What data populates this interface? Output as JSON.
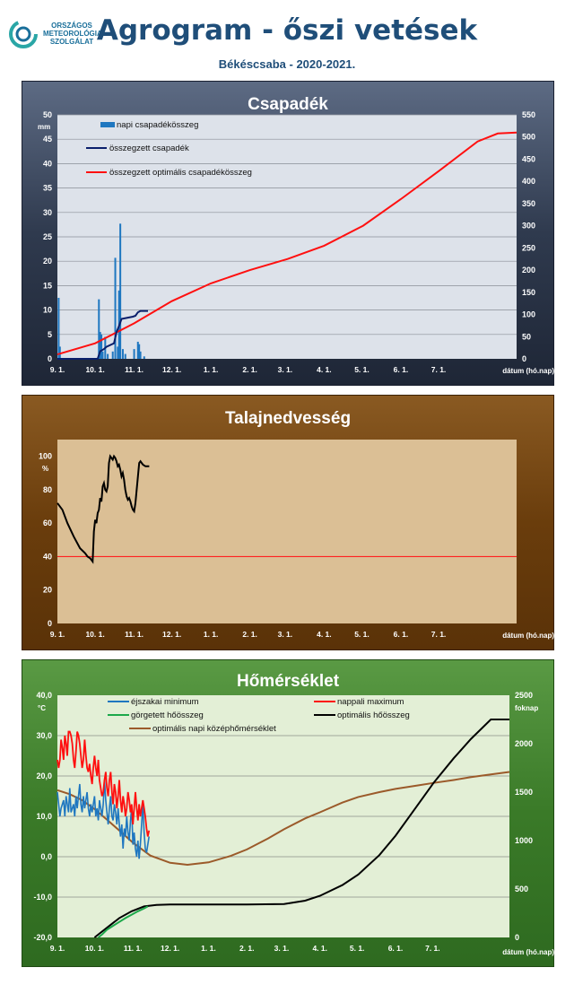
{
  "header": {
    "logo_lines": [
      "ORSZÁGOS",
      "METEOROLÓGIAI",
      "SZOLGÁLAT"
    ],
    "title": "Agrogram - őszi vetések",
    "subtitle": "Békéscsaba - 2020-2021."
  },
  "colors": {
    "rain_bar": "#1f77c0",
    "rain_cum": "#0a1f6b",
    "rain_opt": "#ff1010",
    "soil_line": "#000000",
    "soil_threshold": "#ff2020",
    "tmin": "#1f77c0",
    "tmax": "#ff1010",
    "gdd": "#1ca84a",
    "gdd_opt": "#000000",
    "tmean_opt": "#9b5a2a"
  },
  "chart_data": [
    {
      "type": "bar",
      "title": "Csapadék",
      "ylabel_left": "mm",
      "ylabel_right": "",
      "xlabel": "dátum (hó.nap)",
      "x_ticks": [
        "9. 1.",
        "10. 1.",
        "11. 1.",
        "12. 1.",
        "1. 1.",
        "2. 1.",
        "3. 1.",
        "4. 1.",
        "5. 1.",
        "6. 1.",
        "7. 1."
      ],
      "ylim_left": [
        0,
        50
      ],
      "y_ticks_left": [
        "0",
        "5",
        "10",
        "15",
        "20",
        "25",
        "30",
        "35",
        "40",
        "45",
        "50"
      ],
      "ylim_right": [
        0,
        550
      ],
      "y_ticks_right": [
        "0",
        "50",
        "100",
        "150",
        "200",
        "250",
        "300",
        "350",
        "400",
        "450",
        "500",
        "550"
      ],
      "legend": [
        "napi csapadékösszeg",
        "összegzett csapadék",
        "összegzett optimális csapadékösszeg"
      ],
      "daily_precip": [
        [
          1,
          12.5
        ],
        [
          2,
          2.5
        ],
        [
          33,
          12.2
        ],
        [
          34,
          5.5
        ],
        [
          35,
          5.0
        ],
        [
          36,
          1.5
        ],
        [
          38,
          4.5
        ],
        [
          40,
          1.0
        ],
        [
          44,
          1.5
        ],
        [
          46,
          20.7
        ],
        [
          48,
          2.5
        ],
        [
          49,
          14.0
        ],
        [
          50,
          27.7
        ],
        [
          52,
          2.0
        ],
        [
          54,
          1.0
        ],
        [
          61,
          2.0
        ],
        [
          64,
          3.5
        ],
        [
          65,
          3.0
        ],
        [
          66,
          1.5
        ],
        [
          69,
          0.5
        ]
      ],
      "cum_precip": [
        [
          0,
          0
        ],
        [
          32,
          0
        ],
        [
          34,
          17
        ],
        [
          37,
          22
        ],
        [
          39,
          27
        ],
        [
          45,
          35
        ],
        [
          47,
          60
        ],
        [
          49,
          74
        ],
        [
          51,
          90
        ],
        [
          60,
          95
        ],
        [
          62,
          97
        ],
        [
          64,
          105
        ],
        [
          66,
          108
        ],
        [
          72,
          108
        ]
      ],
      "opt_cum_precip": [
        [
          0,
          10
        ],
        [
          30,
          35
        ],
        [
          61,
          80
        ],
        [
          91,
          130
        ],
        [
          122,
          170
        ],
        [
          153,
          200
        ],
        [
          183,
          225
        ],
        [
          212,
          255
        ],
        [
          243,
          300
        ],
        [
          273,
          360
        ],
        [
          304,
          425
        ],
        [
          334,
          490
        ],
        [
          350,
          508
        ],
        [
          365,
          510
        ]
      ]
    },
    {
      "type": "line",
      "title": "Talajnedvesség",
      "ylabel": "%",
      "xlabel": "dátum (hó.nap)",
      "x_ticks": [
        "9. 1.",
        "10. 1.",
        "11. 1.",
        "12. 1.",
        "1. 1.",
        "2. 1.",
        "3. 1.",
        "4. 1.",
        "5. 1.",
        "6. 1.",
        "7. 1."
      ],
      "ylim": [
        0,
        110
      ],
      "y_ticks": [
        "0",
        "20",
        "40",
        "60",
        "80",
        "100"
      ],
      "threshold": 40,
      "soil_moisture": [
        [
          0,
          72
        ],
        [
          4,
          68
        ],
        [
          8,
          60
        ],
        [
          13,
          52
        ],
        [
          18,
          45
        ],
        [
          22,
          42
        ],
        [
          24,
          40
        ],
        [
          26,
          39
        ],
        [
          27,
          38
        ],
        [
          28,
          37
        ],
        [
          29,
          55
        ],
        [
          30,
          62
        ],
        [
          31,
          60
        ],
        [
          32,
          66
        ],
        [
          33,
          68
        ],
        [
          34,
          75
        ],
        [
          35,
          73
        ],
        [
          36,
          82
        ],
        [
          37,
          84
        ],
        [
          38,
          80
        ],
        [
          39,
          79
        ],
        [
          40,
          82
        ],
        [
          41,
          96
        ],
        [
          42,
          100
        ],
        [
          43,
          99
        ],
        [
          44,
          98
        ],
        [
          45,
          100
        ],
        [
          46,
          99
        ],
        [
          47,
          97
        ],
        [
          48,
          94
        ],
        [
          49,
          95
        ],
        [
          50,
          92
        ],
        [
          51,
          88
        ],
        [
          52,
          90
        ],
        [
          53,
          86
        ],
        [
          54,
          80
        ],
        [
          55,
          76
        ],
        [
          56,
          74
        ],
        [
          57,
          75
        ],
        [
          58,
          73
        ],
        [
          59,
          70
        ],
        [
          60,
          68
        ],
        [
          61,
          67
        ],
        [
          62,
          72
        ],
        [
          63,
          80
        ],
        [
          64,
          88
        ],
        [
          65,
          96
        ],
        [
          66,
          97
        ],
        [
          67,
          96
        ],
        [
          68,
          95
        ],
        [
          70,
          94
        ],
        [
          73,
          94
        ]
      ]
    },
    {
      "type": "line",
      "title": "Hőmérséklet",
      "ylabel_left": "°C",
      "ylabel_right": "foknap",
      "xlabel": "dátum (hó.nap)",
      "x_ticks": [
        "9. 1.",
        "10. 1.",
        "11. 1.",
        "12. 1.",
        "1. 1.",
        "2. 1.",
        "3. 1.",
        "4. 1.",
        "5. 1.",
        "6. 1.",
        "7. 1."
      ],
      "ylim_left": [
        -20,
        40
      ],
      "y_ticks_left": [
        "-20,0",
        "-10,0",
        "0,0",
        "10,0",
        "20,0",
        "30,0",
        "40,0"
      ],
      "ylim_right": [
        0,
        2500
      ],
      "y_ticks_right": [
        "0",
        "500",
        "1000",
        "1500",
        "2000",
        "2500"
      ],
      "legend": [
        "éjszakai minimum",
        "nappali maximum",
        "görgetett hőösszeg",
        "optimális hőösszeg",
        "optimális napi középhőmérséklet"
      ],
      "tmin": [
        [
          0,
          16
        ],
        [
          2,
          10
        ],
        [
          3,
          12
        ],
        [
          5,
          14
        ],
        [
          6,
          10
        ],
        [
          7,
          15
        ],
        [
          9,
          11
        ],
        [
          10,
          17
        ],
        [
          11,
          11
        ],
        [
          13,
          13
        ],
        [
          14,
          10
        ],
        [
          15,
          15
        ],
        [
          16,
          12
        ],
        [
          18,
          18
        ],
        [
          19,
          13
        ],
        [
          20,
          11
        ],
        [
          21,
          15
        ],
        [
          22,
          12
        ],
        [
          24,
          16
        ],
        [
          25,
          12
        ],
        [
          26,
          10
        ],
        [
          27,
          13
        ],
        [
          28,
          11
        ],
        [
          30,
          15
        ],
        [
          31,
          10
        ],
        [
          32,
          12
        ],
        [
          33,
          9
        ],
        [
          34,
          14
        ],
        [
          35,
          12
        ],
        [
          36,
          10
        ],
        [
          37,
          13
        ],
        [
          38,
          19
        ],
        [
          39,
          14
        ],
        [
          40,
          11
        ],
        [
          41,
          8
        ],
        [
          42,
          12
        ],
        [
          43,
          15
        ],
        [
          44,
          10
        ],
        [
          45,
          9
        ],
        [
          46,
          13
        ],
        [
          47,
          11
        ],
        [
          48,
          8
        ],
        [
          49,
          12
        ],
        [
          50,
          8
        ],
        [
          51,
          5
        ],
        [
          52,
          8
        ],
        [
          53,
          2
        ],
        [
          54,
          7
        ],
        [
          55,
          5
        ],
        [
          56,
          10
        ],
        [
          57,
          6
        ],
        [
          58,
          4
        ],
        [
          59,
          9
        ],
        [
          60,
          12
        ],
        [
          61,
          3
        ],
        [
          62,
          6
        ],
        [
          63,
          2
        ],
        [
          64,
          0
        ],
        [
          65,
          4
        ],
        [
          66,
          -0.5
        ],
        [
          67,
          3
        ],
        [
          68,
          8
        ],
        [
          69,
          13
        ],
        [
          70,
          6
        ],
        [
          71,
          2
        ],
        [
          72,
          1
        ],
        [
          73,
          3
        ],
        [
          74,
          5
        ]
      ],
      "tmax": [
        [
          0,
          24
        ],
        [
          1,
          22
        ],
        [
          2,
          24
        ],
        [
          3,
          29
        ],
        [
          4,
          27
        ],
        [
          5,
          24
        ],
        [
          6,
          30
        ],
        [
          7,
          28
        ],
        [
          8,
          25
        ],
        [
          9,
          31
        ],
        [
          10,
          31
        ],
        [
          11,
          30
        ],
        [
          12,
          28
        ],
        [
          13,
          24
        ],
        [
          14,
          22
        ],
        [
          15,
          26
        ],
        [
          16,
          31
        ],
        [
          17,
          30
        ],
        [
          18,
          28
        ],
        [
          19,
          25
        ],
        [
          20,
          22
        ],
        [
          21,
          24
        ],
        [
          22,
          29
        ],
        [
          23,
          25
        ],
        [
          24,
          22
        ],
        [
          25,
          21
        ],
        [
          26,
          23
        ],
        [
          27,
          20
        ],
        [
          28,
          18
        ],
        [
          29,
          22
        ],
        [
          30,
          25
        ],
        [
          31,
          22
        ],
        [
          32,
          20
        ],
        [
          33,
          24
        ],
        [
          34,
          19
        ],
        [
          35,
          17
        ],
        [
          36,
          15
        ],
        [
          37,
          16
        ],
        [
          38,
          19
        ],
        [
          39,
          21
        ],
        [
          40,
          17
        ],
        [
          41,
          15
        ],
        [
          42,
          19
        ],
        [
          43,
          21
        ],
        [
          44,
          16
        ],
        [
          45,
          13
        ],
        [
          46,
          18
        ],
        [
          47,
          16
        ],
        [
          48,
          12
        ],
        [
          49,
          15
        ],
        [
          50,
          19
        ],
        [
          51,
          14
        ],
        [
          52,
          11
        ],
        [
          53,
          15
        ],
        [
          54,
          13
        ],
        [
          55,
          10
        ],
        [
          56,
          12
        ],
        [
          57,
          16
        ],
        [
          58,
          14
        ],
        [
          59,
          11
        ],
        [
          60,
          13
        ],
        [
          61,
          8
        ],
        [
          62,
          12
        ],
        [
          63,
          16
        ],
        [
          64,
          12
        ],
        [
          65,
          9
        ],
        [
          66,
          13
        ],
        [
          67,
          10
        ],
        [
          68,
          12
        ],
        [
          69,
          14
        ],
        [
          70,
          12
        ],
        [
          71,
          10
        ],
        [
          72,
          7
        ],
        [
          73,
          5
        ],
        [
          74,
          6.5
        ]
      ],
      "gdd": [
        [
          33,
          0
        ],
        [
          36,
          30
        ],
        [
          40,
          80
        ],
        [
          45,
          120
        ],
        [
          50,
          160
        ],
        [
          55,
          200
        ],
        [
          60,
          235
        ],
        [
          65,
          270
        ],
        [
          70,
          300
        ],
        [
          73,
          320
        ]
      ],
      "gdd_opt": [
        [
          30,
          0
        ],
        [
          40,
          100
        ],
        [
          50,
          200
        ],
        [
          60,
          270
        ],
        [
          70,
          320
        ],
        [
          80,
          335
        ],
        [
          91,
          340
        ],
        [
          122,
          340
        ],
        [
          153,
          340
        ],
        [
          183,
          345
        ],
        [
          200,
          380
        ],
        [
          212,
          430
        ],
        [
          230,
          540
        ],
        [
          243,
          650
        ],
        [
          260,
          850
        ],
        [
          273,
          1050
        ],
        [
          290,
          1350
        ],
        [
          304,
          1600
        ],
        [
          320,
          1850
        ],
        [
          334,
          2050
        ],
        [
          350,
          2250
        ],
        [
          365,
          2250
        ]
      ],
      "tmean_opt": [
        [
          0,
          16.5
        ],
        [
          10,
          15.5
        ],
        [
          20,
          14
        ],
        [
          30,
          11.8
        ],
        [
          40,
          9.2
        ],
        [
          50,
          6.5
        ],
        [
          61,
          3.5
        ],
        [
          75,
          0.3
        ],
        [
          91,
          -1.5
        ],
        [
          105,
          -2.0
        ],
        [
          122,
          -1.4
        ],
        [
          140,
          0.2
        ],
        [
          153,
          1.8
        ],
        [
          170,
          4.5
        ],
        [
          183,
          6.8
        ],
        [
          200,
          9.5
        ],
        [
          212,
          11.0
        ],
        [
          230,
          13.4
        ],
        [
          243,
          14.8
        ],
        [
          260,
          16.0
        ],
        [
          273,
          16.8
        ],
        [
          290,
          17.6
        ],
        [
          304,
          18.3
        ],
        [
          320,
          19.0
        ],
        [
          334,
          19.7
        ],
        [
          350,
          20.4
        ],
        [
          365,
          21.0
        ]
      ]
    }
  ]
}
